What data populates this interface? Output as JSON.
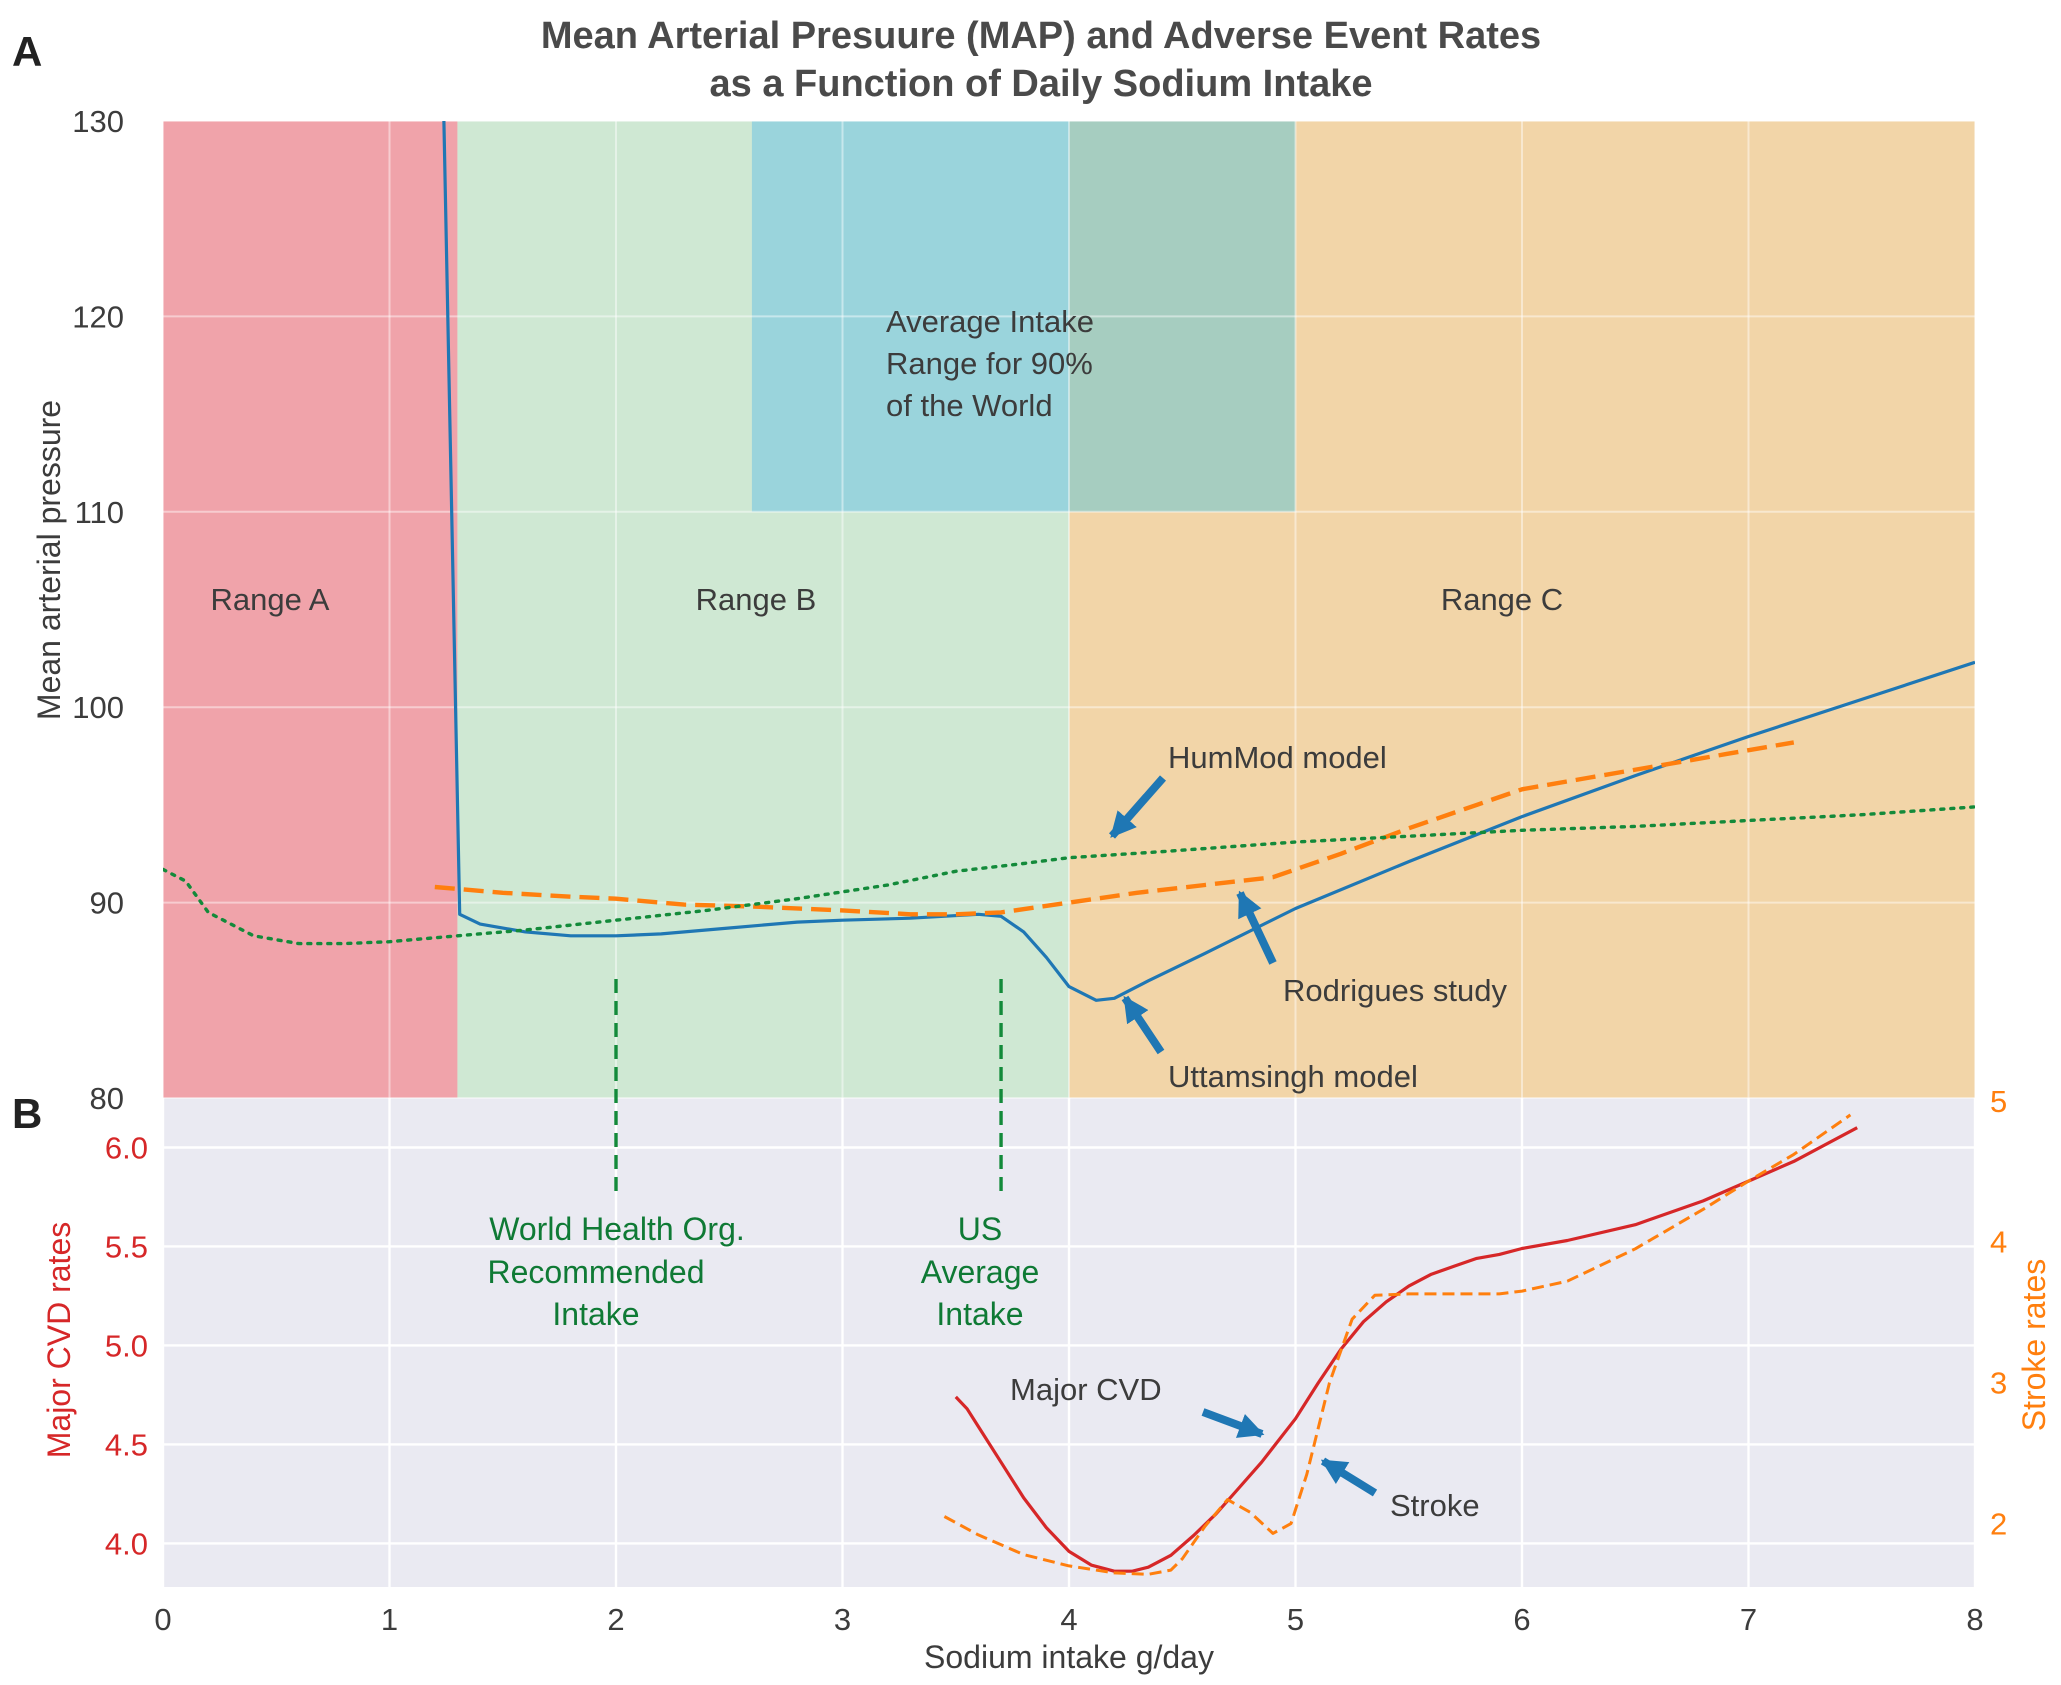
{
  "chart_data": {
    "type": "line",
    "title_lines": [
      "Mean Arterial Presuure (MAP) and Adverse Event Rates",
      "as a Function of Daily Sodium Intake"
    ],
    "xlabel": "Sodium intake g/day",
    "xlim": [
      0,
      8
    ],
    "x_ticks": [
      "0",
      "1",
      "2",
      "3",
      "4",
      "5",
      "6",
      "7",
      "8"
    ],
    "panel_a": {
      "letter": "A",
      "ylabel": "Mean arterial pressure",
      "ylim": [
        80,
        130
      ],
      "y_ticks": [
        "80",
        "90",
        "100",
        "110",
        "120",
        "130"
      ],
      "regions": [
        {
          "label": "Range A",
          "x0": 0,
          "x1": 1.3,
          "y0": 80,
          "y1": 130,
          "color": "#f0a3aa"
        },
        {
          "label": "Range B",
          "x0": 1.3,
          "x1": 4.0,
          "y0": 80,
          "y1": 130,
          "color": "#cfe8d3"
        },
        {
          "label": "Range C",
          "x0": 4.0,
          "x1": 8.0,
          "y0": 80,
          "y1": 130,
          "color": "#f2d5a8"
        }
      ],
      "world_band": {
        "label_lines": [
          "Average Intake",
          "Range for 90%",
          "of the World"
        ],
        "x0": 2.6,
        "x1": 5.0,
        "y0": 110,
        "y1": 130,
        "color": "#9ad4dc",
        "overlap_color": "#a6cdc0"
      },
      "series": [
        {
          "name": "Uttamsingh model",
          "color": "#1f77b4",
          "style": "solid",
          "x": [
            1.24,
            1.31,
            1.4,
            1.6,
            1.8,
            2.0,
            2.2,
            2.5,
            2.8,
            3.0,
            3.3,
            3.6,
            3.7,
            3.8,
            3.9,
            4.0,
            4.12,
            4.2,
            4.35,
            4.6,
            5.0,
            5.5,
            6.0,
            6.5,
            7.0,
            7.5,
            8.0
          ],
          "y": [
            130,
            89.4,
            88.9,
            88.5,
            88.3,
            88.3,
            88.4,
            88.7,
            89.0,
            89.1,
            89.2,
            89.4,
            89.3,
            88.5,
            87.2,
            85.7,
            85.0,
            85.1,
            86.0,
            87.4,
            89.7,
            92.1,
            94.4,
            96.5,
            98.5,
            100.4,
            102.3
          ]
        },
        {
          "name": "Rodrigues study",
          "color": "#ff7f0e",
          "style": "dashed",
          "x": [
            1.2,
            1.5,
            1.8,
            2.0,
            2.3,
            2.6,
            3.0,
            3.3,
            3.5,
            3.7,
            4.0,
            4.3,
            4.6,
            4.9,
            5.2,
            5.5,
            5.8,
            6.0,
            6.3,
            6.6,
            6.9,
            7.2
          ],
          "y": [
            90.8,
            90.5,
            90.3,
            90.2,
            89.9,
            89.8,
            89.6,
            89.4,
            89.4,
            89.5,
            90.0,
            90.5,
            90.9,
            91.3,
            92.5,
            93.8,
            95.0,
            95.8,
            96.4,
            97.0,
            97.6,
            98.2
          ]
        },
        {
          "name": "HumMod model",
          "color": "#138a3a",
          "style": "dotted",
          "x": [
            0,
            0.1,
            0.2,
            0.4,
            0.6,
            0.8,
            1.0,
            1.3,
            1.6,
            2.0,
            2.4,
            2.8,
            3.2,
            3.5,
            3.8,
            4.0,
            4.4,
            5.0,
            5.5,
            6.0,
            6.5,
            7.0,
            7.5,
            8.0
          ],
          "y": [
            91.7,
            91.1,
            89.5,
            88.3,
            87.9,
            87.9,
            88.0,
            88.3,
            88.6,
            89.1,
            89.6,
            90.2,
            90.9,
            91.6,
            92.0,
            92.3,
            92.6,
            93.1,
            93.4,
            93.7,
            93.9,
            94.2,
            94.5,
            94.9
          ]
        }
      ],
      "annotations": [
        {
          "text": "HumMod model",
          "x": 4.45,
          "y": 96.8
        },
        {
          "text": "Rodrigues study",
          "x": 4.95,
          "y": 85.5
        },
        {
          "text": "Uttamsingh model",
          "x": 4.45,
          "y": 81.0
        }
      ]
    },
    "panel_b": {
      "letter": "B",
      "ylabel_left": "Major CVD rates",
      "ylabel_right": "Stroke rates",
      "ylim_left": [
        3.78,
        6.25
      ],
      "ylim_right": [
        1.55,
        5.02
      ],
      "y_ticks_left": [
        "4.0",
        "4.5",
        "5.0",
        "5.5",
        "6.0"
      ],
      "y_ticks_right": [
        "2",
        "3",
        "4",
        "5"
      ],
      "left_color": "#d62728",
      "right_color": "#ff7f0e",
      "series": [
        {
          "name": "Major CVD",
          "axis": "left",
          "color": "#d62728",
          "style": "solid",
          "x": [
            3.5,
            3.55,
            3.6,
            3.7,
            3.8,
            3.9,
            4.0,
            4.1,
            4.2,
            4.28,
            4.35,
            4.45,
            4.55,
            4.65,
            4.75,
            4.85,
            5.0,
            5.1,
            5.2,
            5.3,
            5.4,
            5.5,
            5.6,
            5.7,
            5.8,
            5.9,
            6.0,
            6.2,
            6.5,
            6.8,
            7.0,
            7.2,
            7.48
          ],
          "y": [
            4.74,
            4.68,
            4.59,
            4.41,
            4.23,
            4.08,
            3.96,
            3.89,
            3.86,
            3.86,
            3.88,
            3.94,
            4.04,
            4.15,
            4.28,
            4.41,
            4.63,
            4.81,
            4.98,
            5.12,
            5.22,
            5.3,
            5.36,
            5.4,
            5.44,
            5.46,
            5.49,
            5.53,
            5.61,
            5.73,
            5.83,
            5.93,
            6.1
          ]
        },
        {
          "name": "Stroke",
          "axis": "right",
          "color": "#ff7f0e",
          "style": "dashed",
          "x": [
            3.45,
            3.6,
            3.8,
            4.0,
            4.2,
            4.35,
            4.45,
            4.5,
            4.6,
            4.7,
            4.8,
            4.9,
            4.98,
            5.05,
            5.15,
            5.25,
            5.35,
            5.5,
            5.7,
            5.9,
            6.0,
            6.2,
            6.5,
            6.8,
            7.0,
            7.2,
            7.45
          ],
          "y": [
            2.05,
            1.92,
            1.78,
            1.7,
            1.65,
            1.64,
            1.67,
            1.75,
            1.98,
            2.17,
            2.08,
            1.93,
            2.0,
            2.35,
            3.0,
            3.45,
            3.62,
            3.63,
            3.63,
            3.63,
            3.65,
            3.72,
            3.95,
            4.23,
            4.43,
            4.62,
            4.9
          ]
        }
      ],
      "annotations": [
        {
          "text": "Major CVD",
          "x": 3.75,
          "y": 4.68,
          "axis": "left"
        },
        {
          "text": "Stroke",
          "x": 5.43,
          "y": 4.11,
          "axis": "left"
        }
      ]
    },
    "reference_lines": [
      {
        "label_lines": [
          "World Health Org.",
          "Recommended",
          "Intake"
        ],
        "x": 2.0,
        "color": "#138a3a"
      },
      {
        "label_lines": [
          "US",
          "Average",
          "Intake"
        ],
        "x": 3.7,
        "color": "#138a3a"
      }
    ],
    "grid": true,
    "background_b": "#eaeaf2",
    "arrow_color": "#1f77b4"
  }
}
